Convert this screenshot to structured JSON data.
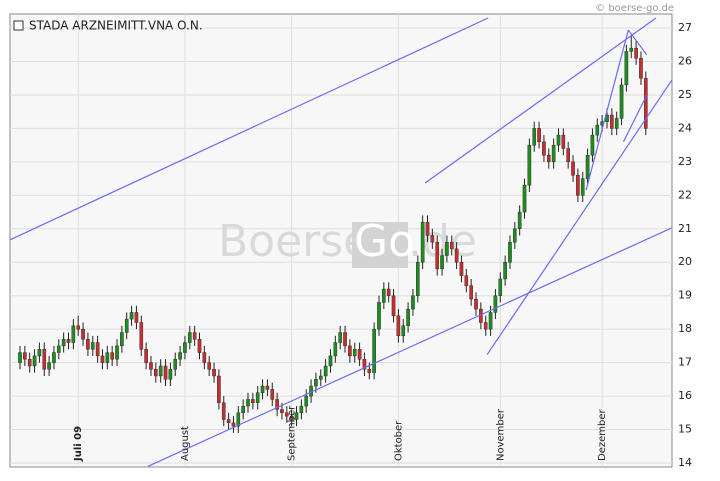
{
  "chart_data": {
    "type": "candlestick",
    "title": "STADA ARZNEIMITT.VNA O.N.",
    "credit": "© boerse-go.de",
    "watermark": [
      "Boerse",
      "Go",
      ".de"
    ],
    "ylim": [
      13.88,
      27.42
    ],
    "yticks": [
      14,
      15,
      16,
      17,
      18,
      19,
      20,
      21,
      22,
      23,
      24,
      25,
      26,
      27
    ],
    "grid": true,
    "xlim": [
      -2.06,
      134.4
    ],
    "xticks": [
      {
        "value": 12,
        "label": "Juli 09"
      },
      {
        "value": 34,
        "label": "August"
      },
      {
        "value": 56,
        "label": "September"
      },
      {
        "value": 78,
        "label": "Oktober"
      },
      {
        "value": 99,
        "label": "November"
      },
      {
        "value": 120,
        "label": "Dezember"
      }
    ],
    "up_color": "#1e8c1e",
    "down_color": "#c62f2f",
    "trend_color": "#6b6bf2",
    "open": [
      17.0,
      17.3,
      17.1,
      16.9,
      17.2,
      17.4,
      16.8,
      17.0,
      17.3,
      17.5,
      17.7,
      17.6,
      18.1,
      18.0,
      17.7,
      17.4,
      17.6,
      17.2,
      17.0,
      17.3,
      17.1,
      17.5,
      17.9,
      18.3,
      18.5,
      18.2,
      17.4,
      17.0,
      16.8,
      16.6,
      16.9,
      16.5,
      16.8,
      17.1,
      17.3,
      17.6,
      17.9,
      17.7,
      17.3,
      17.0,
      16.8,
      16.6,
      15.8,
      15.3,
      15.2,
      15.1,
      15.5,
      15.7,
      15.9,
      15.8,
      16.1,
      16.3,
      16.2,
      15.9,
      15.6,
      15.5,
      15.4,
      15.3,
      15.5,
      15.7,
      16.0,
      16.3,
      16.5,
      16.6,
      16.9,
      17.2,
      17.6,
      17.9,
      17.5,
      17.2,
      17.4,
      17.1,
      16.8,
      16.7,
      18.0,
      18.8,
      19.2,
      19.0,
      18.4,
      17.8,
      18.1,
      18.6,
      19.0,
      20.0,
      21.2,
      20.8,
      20.6,
      19.8,
      20.2,
      20.6,
      20.4,
      20.0,
      19.6,
      19.3,
      18.9,
      18.6,
      18.2,
      18.0,
      18.5,
      19.0,
      19.5,
      20.0,
      20.6,
      21.0,
      21.5,
      22.3,
      23.5,
      24.0,
      23.6,
      23.2,
      23.0,
      23.5,
      23.8,
      23.4,
      23.0,
      22.6,
      22.0,
      22.5,
      23.2,
      23.8,
      24.1,
      24.2,
      24.4,
      24.0,
      24.3,
      25.3,
      26.3,
      26.4,
      26.1,
      25.5
    ],
    "high": [
      17.5,
      17.5,
      17.3,
      17.4,
      17.6,
      17.6,
      17.2,
      17.5,
      17.7,
      17.9,
      17.9,
      18.3,
      18.4,
      18.2,
      17.9,
      17.8,
      17.8,
      17.4,
      17.5,
      17.5,
      17.7,
      18.1,
      18.5,
      18.7,
      18.7,
      18.4,
      17.6,
      17.2,
      17.0,
      17.1,
      17.1,
      17.0,
      17.3,
      17.5,
      17.8,
      18.1,
      18.1,
      17.9,
      17.5,
      17.2,
      17.0,
      16.8,
      16.0,
      15.5,
      15.4,
      15.7,
      15.9,
      16.1,
      16.1,
      16.3,
      16.5,
      16.5,
      16.4,
      16.1,
      15.8,
      15.7,
      15.6,
      15.7,
      15.9,
      16.2,
      16.5,
      16.7,
      16.8,
      17.1,
      17.4,
      17.8,
      18.1,
      18.1,
      17.7,
      17.6,
      17.6,
      17.3,
      17.0,
      18.2,
      19.0,
      19.4,
      19.4,
      19.2,
      18.6,
      18.3,
      18.8,
      19.2,
      20.2,
      21.4,
      21.4,
      21.0,
      20.8,
      20.4,
      20.8,
      20.8,
      20.6,
      20.2,
      19.8,
      19.5,
      19.1,
      18.8,
      18.4,
      18.7,
      19.2,
      19.7,
      20.2,
      20.8,
      21.2,
      21.7,
      22.5,
      23.7,
      24.2,
      24.2,
      23.8,
      23.4,
      23.7,
      24.0,
      24.0,
      23.6,
      23.2,
      22.8,
      22.7,
      23.4,
      24.0,
      24.3,
      24.4,
      24.6,
      24.6,
      24.5,
      25.5,
      26.5,
      26.8,
      26.6,
      26.3,
      25.7
    ],
    "low": [
      16.8,
      16.9,
      16.7,
      16.7,
      17.0,
      16.6,
      16.6,
      16.8,
      17.1,
      17.3,
      17.4,
      17.4,
      17.8,
      17.5,
      17.2,
      17.2,
      17.0,
      16.8,
      16.8,
      16.9,
      16.9,
      17.3,
      17.7,
      18.1,
      18.0,
      17.2,
      16.8,
      16.6,
      16.4,
      16.4,
      16.3,
      16.3,
      16.6,
      16.9,
      17.1,
      17.4,
      17.5,
      17.1,
      16.8,
      16.6,
      16.4,
      15.6,
      15.1,
      15.0,
      14.9,
      14.9,
      15.3,
      15.5,
      15.6,
      15.6,
      15.9,
      16.0,
      15.7,
      15.4,
      15.3,
      15.2,
      15.1,
      15.1,
      15.3,
      15.5,
      15.8,
      16.1,
      16.3,
      16.4,
      16.7,
      17.0,
      17.4,
      17.3,
      17.0,
      17.0,
      16.9,
      16.6,
      16.5,
      16.5,
      17.8,
      18.6,
      18.8,
      18.2,
      17.6,
      17.6,
      17.9,
      18.4,
      18.8,
      19.8,
      20.6,
      20.4,
      19.6,
      19.6,
      20.0,
      20.2,
      19.8,
      19.4,
      19.1,
      18.7,
      18.4,
      18.0,
      17.8,
      17.8,
      18.3,
      18.8,
      19.3,
      19.8,
      20.4,
      20.8,
      21.3,
      22.1,
      23.3,
      23.4,
      23.0,
      22.8,
      22.8,
      23.3,
      23.2,
      22.8,
      22.4,
      21.8,
      21.8,
      22.3,
      23.0,
      23.6,
      23.9,
      24.0,
      23.8,
      23.8,
      24.1,
      25.1,
      26.1,
      25.9,
      25.3,
      23.8
    ],
    "close": [
      17.3,
      17.1,
      16.9,
      17.2,
      17.4,
      16.8,
      17.0,
      17.3,
      17.5,
      17.7,
      17.6,
      18.1,
      18.0,
      17.7,
      17.4,
      17.6,
      17.2,
      17.0,
      17.3,
      17.1,
      17.5,
      17.9,
      18.3,
      18.5,
      18.2,
      17.4,
      17.0,
      16.8,
      16.6,
      16.9,
      16.5,
      16.8,
      17.1,
      17.3,
      17.6,
      17.9,
      17.7,
      17.3,
      17.0,
      16.8,
      16.6,
      15.8,
      15.3,
      15.2,
      15.1,
      15.5,
      15.7,
      15.9,
      15.8,
      16.1,
      16.3,
      16.2,
      15.9,
      15.6,
      15.5,
      15.4,
      15.3,
      15.5,
      15.7,
      16.0,
      16.3,
      16.5,
      16.6,
      16.9,
      17.2,
      17.6,
      17.9,
      17.5,
      17.2,
      17.4,
      17.1,
      16.8,
      16.7,
      18.0,
      18.8,
      19.2,
      19.0,
      18.4,
      17.8,
      18.1,
      18.6,
      19.0,
      20.0,
      21.2,
      20.8,
      20.6,
      19.8,
      20.2,
      20.6,
      20.4,
      20.0,
      19.6,
      19.3,
      18.9,
      18.6,
      18.2,
      18.0,
      18.5,
      19.0,
      19.5,
      20.0,
      20.6,
      21.0,
      21.5,
      22.3,
      23.5,
      24.0,
      23.6,
      23.2,
      23.0,
      23.5,
      23.8,
      23.4,
      23.0,
      22.6,
      22.0,
      22.5,
      23.2,
      23.8,
      24.1,
      24.2,
      24.4,
      24.0,
      24.3,
      25.3,
      26.3,
      26.4,
      26.1,
      25.5,
      24.0
    ],
    "trendlines": [
      {
        "x": [
          -2.06,
          96.5
        ],
        "y": [
          20.67,
          27.3
        ]
      },
      {
        "x": [
          26.4,
          134.4
        ],
        "y": [
          13.9,
          21.03
        ]
      },
      {
        "x": [
          83.5,
          131.1
        ],
        "y": [
          22.37,
          27.3
        ]
      },
      {
        "x": [
          96.3,
          134.4
        ],
        "y": [
          17.24,
          25.45
        ]
      },
      {
        "x": [
          116.7,
          125.4
        ],
        "y": [
          22.16,
          26.94
        ]
      },
      {
        "x": [
          125.4,
          129.2
        ],
        "y": [
          26.94,
          26.2
        ]
      },
      {
        "x": [
          124.4,
          129.2
        ],
        "y": [
          23.6,
          25.0
        ]
      }
    ]
  }
}
